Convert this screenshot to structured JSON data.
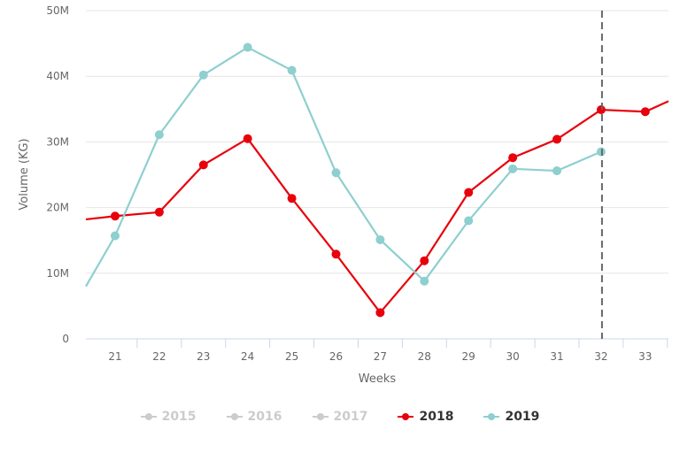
{
  "chart_data": {
    "type": "line",
    "title": "",
    "xlabel": "Weeks",
    "ylabel": "Volume (KG)",
    "ylim": [
      0,
      50000000
    ],
    "y_ticks": [
      "0",
      "10M",
      "20M",
      "30M",
      "40M",
      "50M"
    ],
    "categories": [
      "21",
      "22",
      "23",
      "24",
      "25",
      "26",
      "27",
      "28",
      "29",
      "30",
      "31",
      "32",
      "33"
    ],
    "grid": true,
    "current_week_marker": "32",
    "legend_position": "bottom",
    "series": [
      {
        "name": "2015",
        "visible": false,
        "color": "#cccccc",
        "values": []
      },
      {
        "name": "2016",
        "visible": false,
        "color": "#cccccc",
        "values": []
      },
      {
        "name": "2017",
        "visible": false,
        "color": "#cccccc",
        "values": []
      },
      {
        "name": "2018",
        "visible": true,
        "color": "#e8000b",
        "values": [
          18.7,
          19.3,
          26.5,
          30.5,
          21.4,
          12.9,
          4.0,
          11.9,
          22.3,
          27.6,
          30.4,
          34.9,
          34.6
        ],
        "prev_value": 18.2,
        "next_value": 36.2
      },
      {
        "name": "2019",
        "visible": true,
        "color": "#8ecfcf",
        "values": [
          15.7,
          31.1,
          40.2,
          44.4,
          40.9,
          25.3,
          15.1,
          8.8,
          18.0,
          25.9,
          25.6,
          28.5,
          null
        ],
        "prev_value": 8.0
      }
    ],
    "units_note": "values in millions of KG"
  },
  "legend": [
    {
      "label": "2015",
      "color": "#cccccc",
      "active": false
    },
    {
      "label": "2016",
      "color": "#cccccc",
      "active": false
    },
    {
      "label": "2017",
      "color": "#cccccc",
      "active": false
    },
    {
      "label": "2018",
      "color": "#e8000b",
      "active": true
    },
    {
      "label": "2019",
      "color": "#8ecfcf",
      "active": true
    }
  ]
}
